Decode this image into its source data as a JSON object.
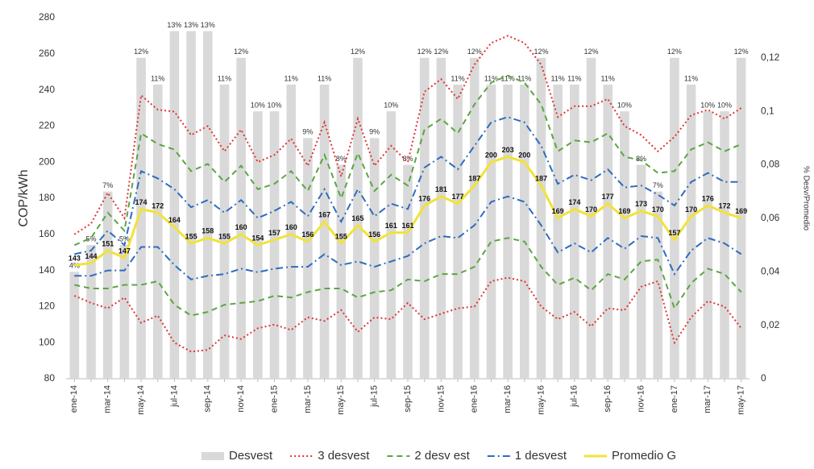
{
  "chart_data": {
    "type": "combo",
    "y_label": "COP/kWh",
    "y2_label": "% Desv/Promedio",
    "categories": [
      "ene-14",
      null,
      "mar-14",
      null,
      "may-14",
      null,
      "jul-14",
      null,
      "sep-14",
      null,
      "nov-14",
      null,
      "ene-15",
      null,
      "mar-15",
      null,
      "may-15",
      null,
      "jul-15",
      null,
      "sep-15",
      null,
      "nov-15",
      null,
      "ene-16",
      null,
      "mar-16",
      null,
      "may-16",
      null,
      "jul-16",
      null,
      "sep-16",
      null,
      "nov-16",
      null,
      "ene-17",
      null,
      "mar-17",
      null,
      "may-17"
    ],
    "ylim": [
      80,
      280
    ],
    "yticks": [
      80,
      100,
      120,
      140,
      160,
      180,
      200,
      220,
      240,
      260,
      280
    ],
    "y2lim": [
      0,
      0.135
    ],
    "y2ticks": [
      0,
      {
        "value": 0.02,
        "label": "0,02"
      },
      {
        "value": 0.04,
        "label": "0,04"
      },
      {
        "value": 0.06,
        "label": "0,06"
      },
      {
        "value": 0.08,
        "label": "0,08"
      },
      {
        "value": 0.1,
        "label": "0,1"
      },
      {
        "value": 0.12,
        "label": "0,12"
      }
    ],
    "legend": "bottom",
    "series": [
      {
        "name": "Desvest",
        "type": "bar",
        "axis": "y2",
        "color": "#d9d9d9",
        "values": [
          0.04,
          0.05,
          0.07,
          0.05,
          0.12,
          0.11,
          0.13,
          0.13,
          0.13,
          0.11,
          0.12,
          0.1,
          0.1,
          0.11,
          0.09,
          0.11,
          0.08,
          0.12,
          0.09,
          0.1,
          0.08,
          0.12,
          0.12,
          0.11,
          0.12,
          0.11,
          0.11,
          0.11,
          0.12,
          0.11,
          0.11,
          0.12,
          0.11,
          0.1,
          0.08,
          0.07,
          0.12,
          0.11,
          0.1,
          0.1,
          0.12
        ],
        "value_labels": [
          "4%",
          "5%",
          "7%",
          "5%",
          "12%",
          "11%",
          "13%",
          "13%",
          "13%",
          "11%",
          "12%",
          "10%",
          "10%",
          "11%",
          "9%",
          "11%",
          "8%",
          "12%",
          "9%",
          "10%",
          "8%",
          "12%",
          "12%",
          "11%",
          "12%",
          "11%",
          "11%",
          "11%",
          "12%",
          "11%",
          "11%",
          "12%",
          "11%",
          "10%",
          "8%",
          "7%",
          "12%",
          "11%",
          "10%",
          "10%",
          "12%"
        ]
      },
      {
        "name": "3 desvest",
        "type": "band",
        "color": "#e03434",
        "dash": "2 3",
        "upper": [
          160,
          166,
          183,
          169,
          237,
          229,
          228,
          215,
          220,
          206,
          218,
          200,
          204,
          213,
          198,
          222,
          192,
          224,
          198,
          209,
          200,
          239,
          246,
          235,
          254,
          266,
          270,
          266,
          254,
          225,
          231,
          231,
          235,
          220,
          215,
          206,
          214,
          226,
          229,
          224,
          230
        ],
        "lower": [
          126,
          122,
          119,
          125,
          111,
          115,
          100,
          95,
          96,
          104,
          102,
          108,
          110,
          107,
          114,
          112,
          118,
          106,
          114,
          113,
          122,
          113,
          116,
          119,
          120,
          134,
          136,
          134,
          120,
          113,
          117,
          109,
          119,
          118,
          131,
          134,
          100,
          114,
          123,
          120,
          108
        ]
      },
      {
        "name": "2 desv est",
        "type": "band",
        "color": "#5aa642",
        "dash": "7 5",
        "upper": [
          154,
          158,
          172,
          162,
          216,
          210,
          207,
          195,
          199,
          189,
          198,
          185,
          188,
          195,
          184,
          204,
          180,
          205,
          184,
          193,
          187,
          218,
          224,
          216,
          232,
          244,
          248,
          244,
          232,
          206,
          212,
          211,
          216,
          203,
          201,
          194,
          195,
          207,
          211,
          206,
          210
        ],
        "lower": [
          132,
          130,
          130,
          132,
          132,
          134,
          121,
          115,
          117,
          121,
          122,
          123,
          126,
          125,
          128,
          130,
          130,
          125,
          128,
          129,
          135,
          134,
          138,
          138,
          142,
          156,
          158,
          156,
          142,
          132,
          136,
          129,
          138,
          135,
          145,
          146,
          119,
          133,
          141,
          138,
          128
        ]
      },
      {
        "name": "1 desvest",
        "type": "band",
        "color": "#2e6cc0",
        "dash": "9 4 2 4",
        "upper": [
          149,
          151,
          162,
          154,
          195,
          191,
          185,
          175,
          179,
          172,
          179,
          169,
          173,
          178,
          170,
          185,
          167,
          185,
          170,
          177,
          174,
          197,
          203,
          196,
          209,
          222,
          225,
          222,
          209,
          188,
          193,
          190,
          196,
          186,
          187,
          182,
          176,
          189,
          194,
          189,
          189
        ],
        "lower": [
          137,
          137,
          140,
          140,
          153,
          153,
          143,
          135,
          137,
          138,
          141,
          139,
          141,
          142,
          142,
          149,
          143,
          145,
          142,
          145,
          148,
          155,
          159,
          158,
          165,
          178,
          181,
          178,
          165,
          150,
          155,
          150,
          158,
          152,
          159,
          158,
          138,
          151,
          158,
          155,
          149
        ]
      },
      {
        "name": "Promedio G",
        "type": "line",
        "color": "#f2e23a",
        "values": [
          143,
          144,
          151,
          147,
          174,
          172,
          164,
          155,
          158,
          155,
          160,
          154,
          157,
          160,
          156,
          167,
          155,
          165,
          156,
          161,
          161,
          176,
          181,
          177,
          187,
          200,
          203,
          200,
          187,
          169,
          174,
          170,
          177,
          169,
          173,
          170,
          157,
          170,
          176,
          172,
          169
        ]
      }
    ]
  }
}
